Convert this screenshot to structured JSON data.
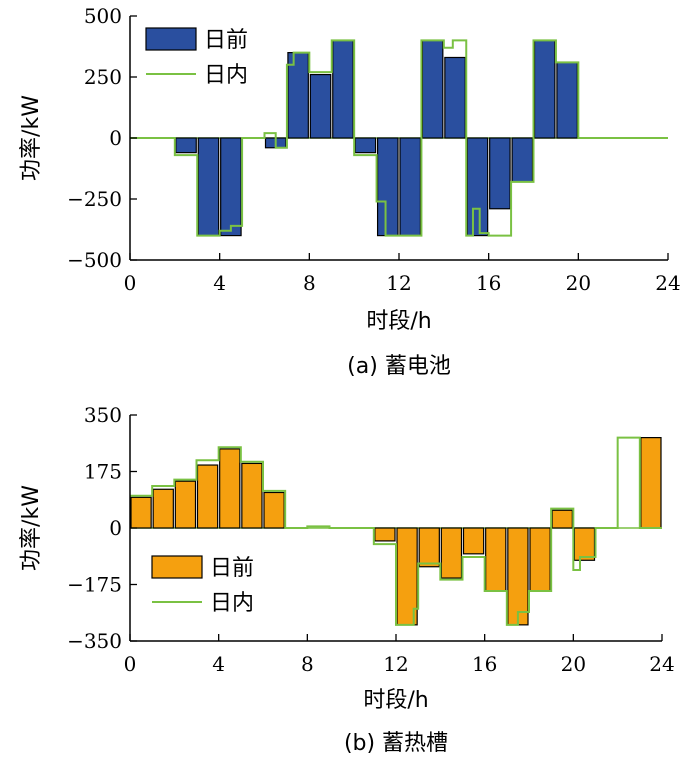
{
  "chart_data": [
    {
      "type": "bar",
      "caption": "(a)  蓄电池",
      "xlabel": "时段/h",
      "ylabel": "功率/kW",
      "xlim": [
        0,
        24
      ],
      "ylim": [
        -500,
        500
      ],
      "xticks": [
        0,
        4,
        8,
        12,
        16,
        20,
        24
      ],
      "yticks": [
        -500,
        -250,
        0,
        250,
        500
      ],
      "ytick_labels": [
        "−500",
        "−250",
        "0",
        "250",
        "500"
      ],
      "legend_position": "top-left",
      "colors": {
        "bar": "#2a4f9f",
        "line": "#7ac143"
      },
      "x": [
        0,
        1,
        2,
        3,
        4,
        5,
        6,
        7,
        8,
        9,
        10,
        11,
        12,
        13,
        14,
        15,
        16,
        17,
        18,
        19,
        20,
        21,
        22,
        23
      ],
      "series": [
        {
          "name": "日前",
          "kind": "bar",
          "values": [
            0,
            0,
            -60,
            -400,
            -400,
            0,
            -40,
            350,
            260,
            400,
            -60,
            -400,
            -400,
            400,
            330,
            -400,
            -290,
            -180,
            400,
            310,
            0,
            0,
            0,
            0
          ]
        },
        {
          "name": "日内",
          "kind": "step",
          "points": [
            [
              0,
              0
            ],
            [
              2,
              0
            ],
            [
              2,
              -70
            ],
            [
              3,
              -70
            ],
            [
              3,
              -400
            ],
            [
              4,
              -400
            ],
            [
              4,
              -380
            ],
            [
              4.5,
              -380
            ],
            [
              4.5,
              -360
            ],
            [
              5,
              -360
            ],
            [
              5,
              0
            ],
            [
              6,
              0
            ],
            [
              6,
              20
            ],
            [
              6.5,
              20
            ],
            [
              6.5,
              -40
            ],
            [
              7,
              -40
            ],
            [
              7,
              300
            ],
            [
              7.3,
              300
            ],
            [
              7.3,
              350
            ],
            [
              8,
              350
            ],
            [
              8,
              270
            ],
            [
              9,
              270
            ],
            [
              9,
              400
            ],
            [
              10,
              400
            ],
            [
              10,
              -70
            ],
            [
              11,
              -70
            ],
            [
              11,
              -260
            ],
            [
              11.4,
              -260
            ],
            [
              11.4,
              -400
            ],
            [
              13,
              -400
            ],
            [
              13,
              400
            ],
            [
              14,
              400
            ],
            [
              14,
              370
            ],
            [
              14.4,
              370
            ],
            [
              14.4,
              400
            ],
            [
              15,
              400
            ],
            [
              15,
              -400
            ],
            [
              15.3,
              -400
            ],
            [
              15.3,
              -290
            ],
            [
              15.6,
              -290
            ],
            [
              15.6,
              -390
            ],
            [
              16,
              -390
            ],
            [
              16,
              -400
            ],
            [
              17,
              -400
            ],
            [
              17,
              -180
            ],
            [
              18,
              -180
            ],
            [
              18,
              400
            ],
            [
              19,
              400
            ],
            [
              19,
              310
            ],
            [
              20,
              310
            ],
            [
              20,
              0
            ],
            [
              24,
              0
            ]
          ]
        }
      ]
    },
    {
      "type": "bar",
      "caption": "(b)  蓄热槽",
      "xlabel": "时段/h",
      "ylabel": "功率/kW",
      "xlim": [
        0,
        24
      ],
      "ylim": [
        -350,
        350
      ],
      "xticks": [
        0,
        4,
        8,
        12,
        16,
        20,
        24
      ],
      "yticks": [
        -350,
        -175,
        0,
        175,
        350
      ],
      "ytick_labels": [
        "−350",
        "−175",
        "0",
        "175",
        "350"
      ],
      "legend_position": "bottom-left",
      "colors": {
        "bar": "#f5a00f",
        "line": "#7ac143"
      },
      "x": [
        0,
        1,
        2,
        3,
        4,
        5,
        6,
        7,
        8,
        9,
        10,
        11,
        12,
        13,
        14,
        15,
        16,
        17,
        18,
        19,
        20,
        21,
        22,
        23
      ],
      "series": [
        {
          "name": "日前",
          "kind": "bar",
          "values": [
            95,
            120,
            145,
            195,
            245,
            200,
            110,
            0,
            0,
            0,
            0,
            -40,
            -300,
            -120,
            -155,
            -80,
            -195,
            -300,
            -195,
            55,
            -100,
            0,
            0,
            280
          ]
        },
        {
          "name": "日内",
          "kind": "step",
          "points": [
            [
              0,
              100
            ],
            [
              1,
              100
            ],
            [
              1,
              130
            ],
            [
              2,
              130
            ],
            [
              2,
              150
            ],
            [
              3,
              150
            ],
            [
              3,
              210
            ],
            [
              4,
              210
            ],
            [
              4,
              250
            ],
            [
              5,
              250
            ],
            [
              5,
              205
            ],
            [
              6,
              205
            ],
            [
              6,
              115
            ],
            [
              7,
              115
            ],
            [
              7,
              0
            ],
            [
              8,
              0
            ],
            [
              8,
              5
            ],
            [
              9,
              5
            ],
            [
              9,
              0
            ],
            [
              11,
              0
            ],
            [
              11,
              -50
            ],
            [
              12,
              -50
            ],
            [
              12,
              -300
            ],
            [
              12.8,
              -300
            ],
            [
              12.8,
              -250
            ],
            [
              13,
              -250
            ],
            [
              13,
              -110
            ],
            [
              14,
              -110
            ],
            [
              14,
              -160
            ],
            [
              15,
              -160
            ],
            [
              15,
              -90
            ],
            [
              16,
              -90
            ],
            [
              16,
              -195
            ],
            [
              17,
              -195
            ],
            [
              17,
              -300
            ],
            [
              17.5,
              -300
            ],
            [
              17.5,
              -260
            ],
            [
              18,
              -260
            ],
            [
              18,
              -195
            ],
            [
              19,
              -195
            ],
            [
              19,
              60
            ],
            [
              20,
              60
            ],
            [
              20,
              -130
            ],
            [
              20.3,
              -130
            ],
            [
              20.3,
              -90
            ],
            [
              21,
              -90
            ],
            [
              21,
              0
            ],
            [
              22,
              0
            ],
            [
              22,
              280
            ],
            [
              23,
              280
            ],
            [
              23,
              0
            ],
            [
              24,
              0
            ]
          ]
        }
      ]
    }
  ]
}
